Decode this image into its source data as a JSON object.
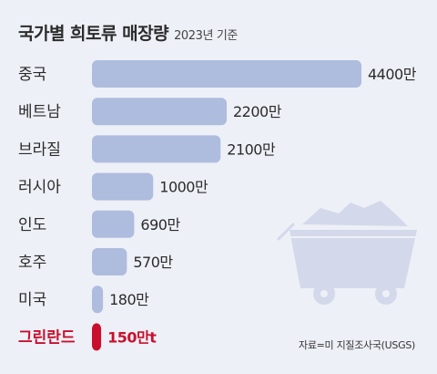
{
  "chart_data": {
    "type": "bar",
    "orientation": "horizontal",
    "title": "국가별 희토류 매장량",
    "subtitle": "2023년 기준",
    "categories": [
      "중국",
      "베트남",
      "브라질",
      "러시아",
      "인도",
      "호주",
      "미국",
      "그린란드"
    ],
    "values": [
      4400,
      2200,
      2100,
      1000,
      690,
      570,
      180,
      150
    ],
    "value_labels": [
      "4400만",
      "2200만",
      "2100만",
      "1000만",
      "690만",
      "570만",
      "180만",
      "150만t"
    ],
    "highlight_index": 7,
    "grid": false,
    "legend": "none",
    "source": "자료=미 지질조사국(USGS)"
  },
  "colors": {
    "background": "#eef0f7",
    "bar": "#aebcde",
    "highlight": "#c8102e",
    "label": "#2b2b2b",
    "illustration": "#d3d9ea"
  },
  "illustration": {
    "icon": "mine-cart-icon"
  }
}
